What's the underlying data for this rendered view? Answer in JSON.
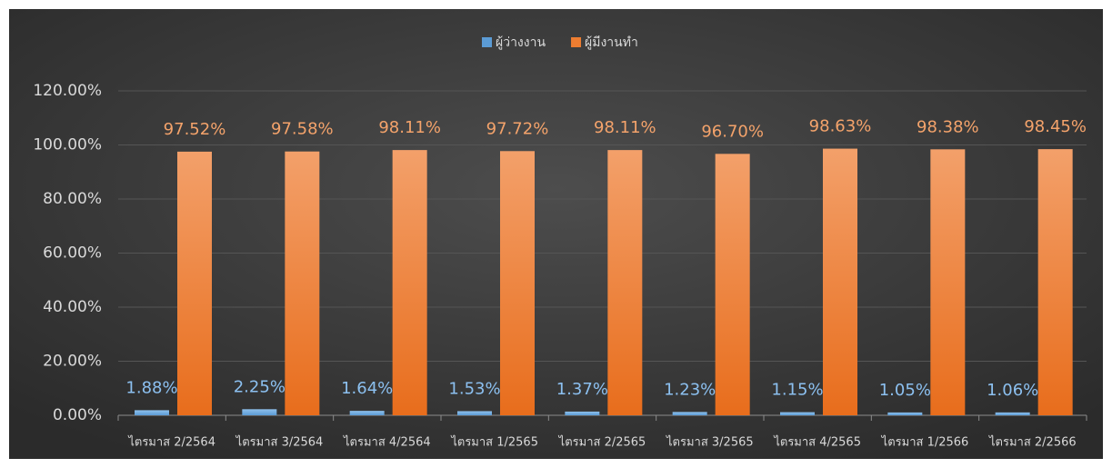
{
  "chart_data": {
    "type": "bar",
    "categories": [
      "ไตรมาส 2/2564",
      "ไตรมาส 3/2564",
      "ไตรมาส 4/2564",
      "ไตรมาส 1/2565",
      "ไตรมาส 2/2565",
      "ไตรมาส 3/2565",
      "ไตรมาส 4/2565",
      "ไตรมาส 1/2566",
      "ไตรมาส 2/2566"
    ],
    "series": [
      {
        "name": "ผู้ว่างงาน",
        "color": "#5b9bd5",
        "values": [
          1.88,
          2.25,
          1.64,
          1.53,
          1.37,
          1.23,
          1.15,
          1.05,
          1.06
        ],
        "value_labels": [
          "1.88%",
          "2.25%",
          "1.64%",
          "1.53%",
          "1.37%",
          "1.23%",
          "1.15%",
          "1.05%",
          "1.06%"
        ]
      },
      {
        "name": "ผู้มีงานทำ",
        "color": "#ed7d31",
        "values": [
          97.52,
          97.58,
          98.11,
          97.72,
          98.11,
          96.7,
          98.63,
          98.38,
          98.45
        ],
        "value_labels": [
          "97.52%",
          "97.58%",
          "98.11%",
          "97.72%",
          "98.11%",
          "96.70%",
          "98.63%",
          "98.38%",
          "98.45%"
        ]
      }
    ],
    "ylim": [
      0,
      120
    ],
    "yticks": [
      {
        "value": 0,
        "label": "0.00%"
      },
      {
        "value": 20,
        "label": "20.00%"
      },
      {
        "value": 40,
        "label": "40.00%"
      },
      {
        "value": 60,
        "label": "60.00%"
      },
      {
        "value": 80,
        "label": "80.00%"
      },
      {
        "value": 100,
        "label": "100.00%"
      },
      {
        "value": 120,
        "label": "120.00%"
      }
    ],
    "grid": true,
    "legend": "top"
  }
}
